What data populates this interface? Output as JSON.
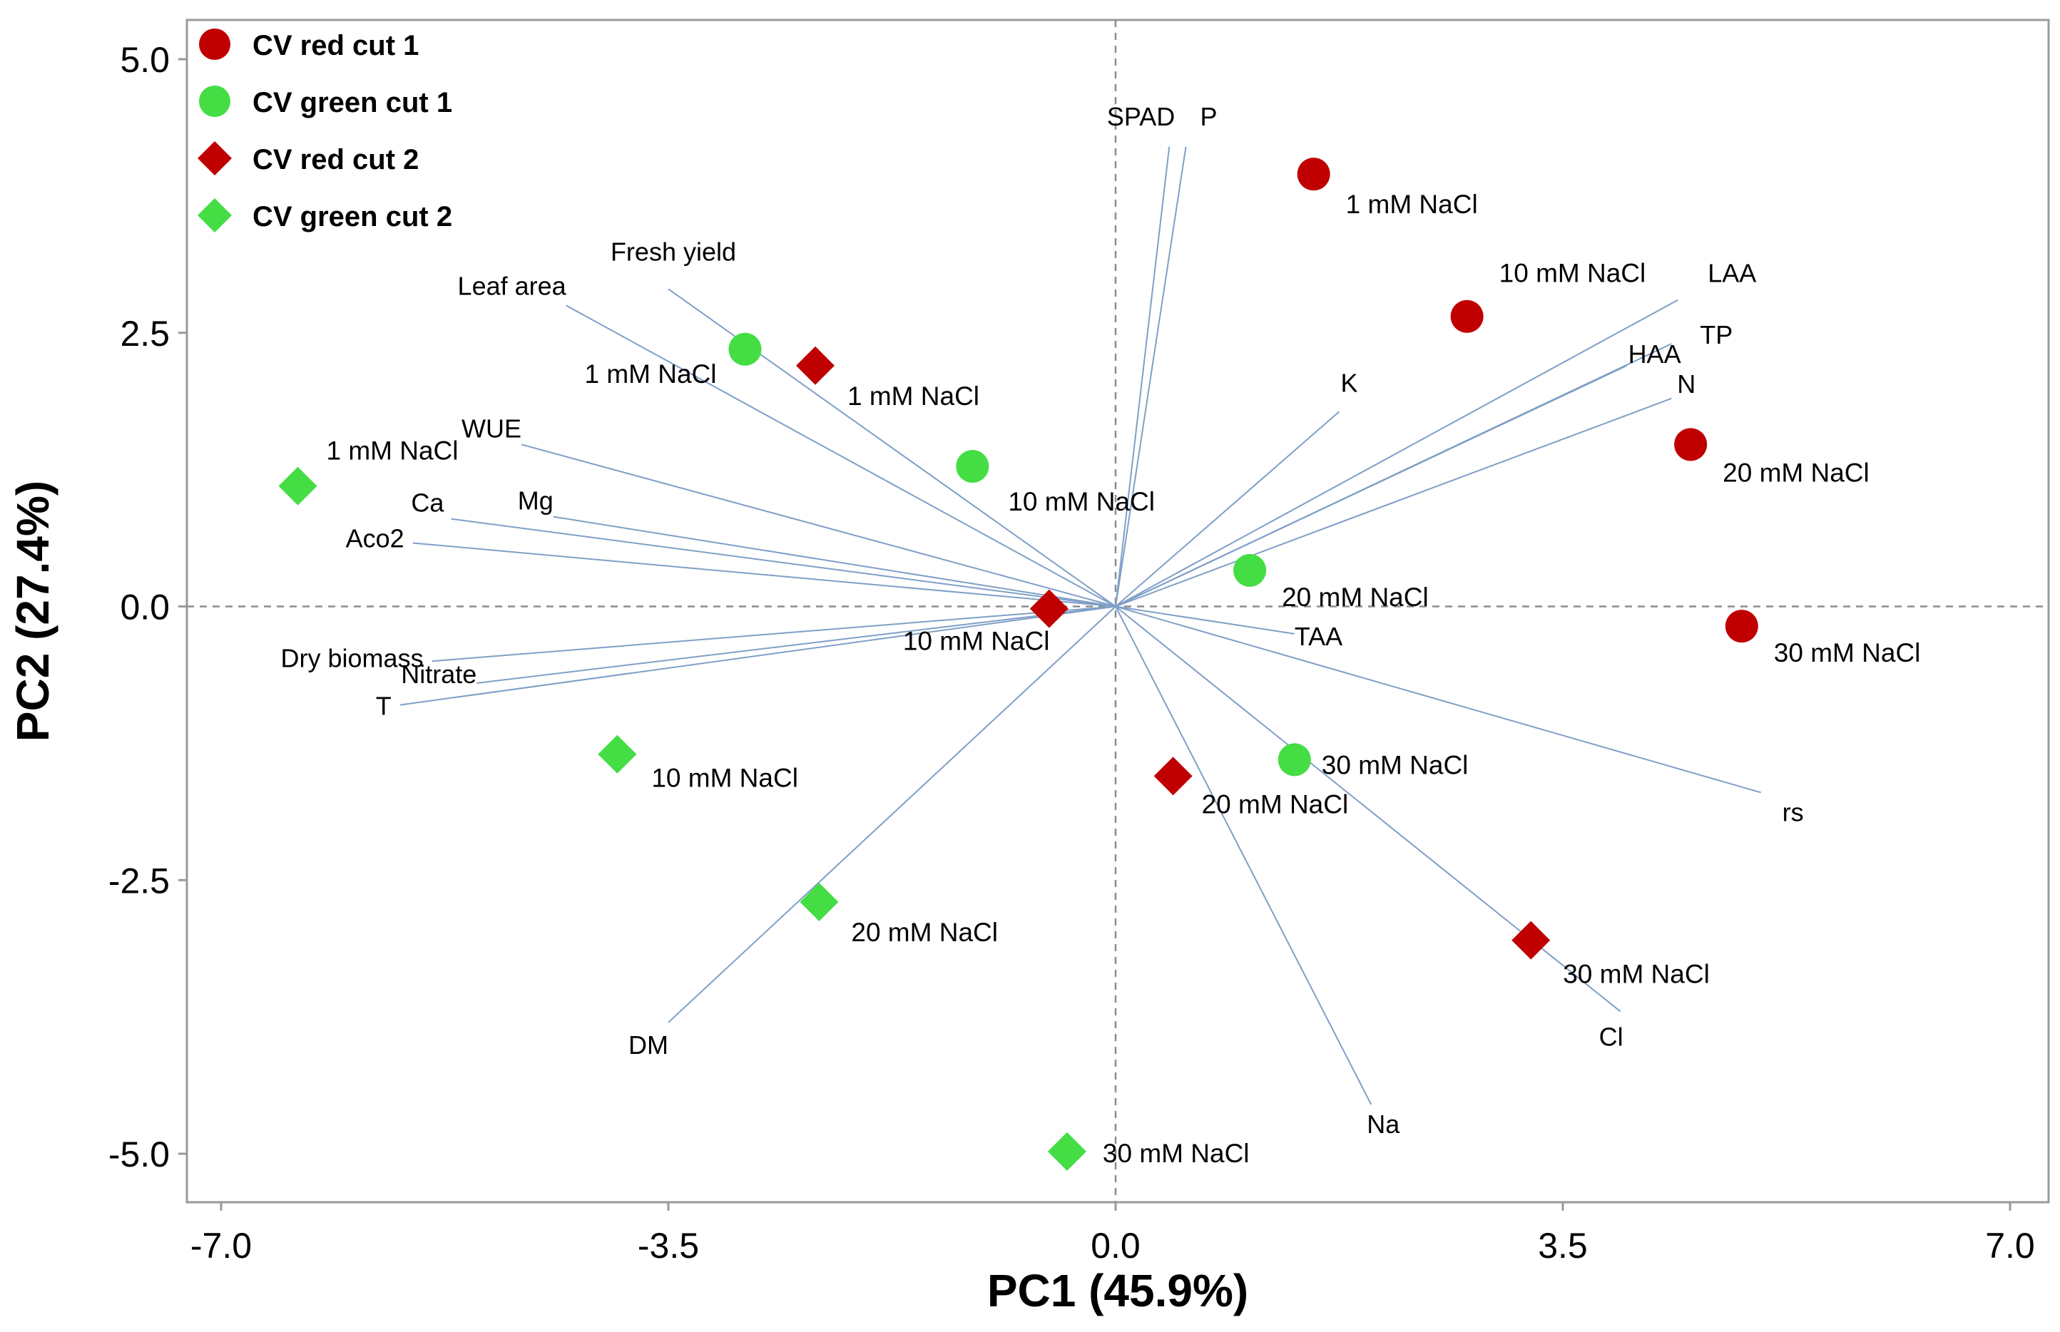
{
  "chart_data": {
    "type": "scatter",
    "subtype": "pca-biplot",
    "title": "",
    "xlabel": "PC1 (45.9%)",
    "ylabel": "PC2 (27.4%)",
    "xlim": [
      -7.0,
      7.0
    ],
    "ylim": [
      -5.4,
      5.4
    ],
    "xticks": [
      -7.0,
      -3.5,
      0.0,
      3.5,
      7.0
    ],
    "xtick_labels": [
      "-7.0",
      "-3.5",
      "0.0",
      "3.5",
      "7.0"
    ],
    "yticks": [
      5.0,
      2.5,
      0.0,
      -2.5,
      -5.0
    ],
    "ytick_labels": [
      "5.0",
      "2.5",
      "0.0",
      "-2.5",
      "-5.0"
    ],
    "zero_lines": true,
    "legend_position": "top-left",
    "colors": {
      "red": "#c00000",
      "green": "#44dd44",
      "loading": "#7f9fc7",
      "axis": "#8c8c8c"
    },
    "series": [
      {
        "name": "CV red cut 1",
        "marker": "circle",
        "color": "#c00000",
        "points": [
          {
            "x": 1.55,
            "y": 3.95,
            "label": "1 mM NaCl"
          },
          {
            "x": 2.75,
            "y": 2.65,
            "label": "10 mM NaCl"
          },
          {
            "x": 4.5,
            "y": 1.48,
            "label": "20 mM NaCl"
          },
          {
            "x": 4.9,
            "y": -0.18,
            "label": "30 mM NaCl"
          }
        ]
      },
      {
        "name": "CV green cut 1",
        "marker": "circle",
        "color": "#44dd44",
        "points": [
          {
            "x": -2.9,
            "y": 2.35,
            "label": "1 mM NaCl"
          },
          {
            "x": -1.12,
            "y": 1.28,
            "label": "10 mM NaCl"
          },
          {
            "x": 1.05,
            "y": 0.33,
            "label": "20 mM NaCl"
          },
          {
            "x": 1.4,
            "y": -1.4,
            "label": "30 mM NaCl"
          }
        ]
      },
      {
        "name": "CV red cut 2",
        "marker": "diamond",
        "color": "#c00000",
        "points": [
          {
            "x": -2.35,
            "y": 2.2,
            "label": "1 mM NaCl"
          },
          {
            "x": -0.52,
            "y": -0.02,
            "label": "10 mM NaCl"
          },
          {
            "x": 0.45,
            "y": -1.55,
            "label": "20 mM NaCl"
          },
          {
            "x": 3.25,
            "y": -3.05,
            "label": "30 mM NaCl"
          }
        ]
      },
      {
        "name": "CV green cut 2",
        "marker": "diamond",
        "color": "#44dd44",
        "points": [
          {
            "x": -6.4,
            "y": 1.1,
            "label": "1 mM NaCl"
          },
          {
            "x": -3.9,
            "y": -1.35,
            "label": "10 mM NaCl"
          },
          {
            "x": -2.32,
            "y": -2.7,
            "label": "20 mM NaCl"
          },
          {
            "x": -0.38,
            "y": -4.98,
            "label": "30 mM NaCl"
          }
        ]
      }
    ],
    "loadings": [
      {
        "label": "SPAD",
        "x": 0.42,
        "y": 4.2
      },
      {
        "label": "P",
        "x": 0.55,
        "y": 4.2
      },
      {
        "label": "Leaf area",
        "x": -4.3,
        "y": 2.75
      },
      {
        "label": "Fresh yield",
        "x": -3.5,
        "y": 2.9
      },
      {
        "label": "WUE",
        "x": -4.65,
        "y": 1.48
      },
      {
        "label": "Ca",
        "x": -5.2,
        "y": 0.8
      },
      {
        "label": "Mg",
        "x": -4.4,
        "y": 0.82
      },
      {
        "label": "Aco2",
        "x": -5.5,
        "y": 0.58
      },
      {
        "label": "Dry biomass",
        "x": -5.35,
        "y": -0.5
      },
      {
        "label": "Nitrate",
        "x": -5.0,
        "y": -0.7
      },
      {
        "label": "T",
        "x": -5.6,
        "y": -0.9
      },
      {
        "label": "DM",
        "x": -3.5,
        "y": -3.8
      },
      {
        "label": "K",
        "x": 1.75,
        "y": 1.78
      },
      {
        "label": "LAA",
        "x": 4.4,
        "y": 2.8
      },
      {
        "label": "TP",
        "x": 4.35,
        "y": 2.4
      },
      {
        "label": "HAA",
        "x": 4.0,
        "y": 2.2
      },
      {
        "label": "N",
        "x": 4.35,
        "y": 1.9
      },
      {
        "label": "TAA",
        "x": 1.4,
        "y": -0.25
      },
      {
        "label": "rs",
        "x": 5.05,
        "y": -1.7
      },
      {
        "label": "Cl",
        "x": 3.95,
        "y": -3.7
      },
      {
        "label": "Na",
        "x": 2.0,
        "y": -4.55
      }
    ]
  }
}
